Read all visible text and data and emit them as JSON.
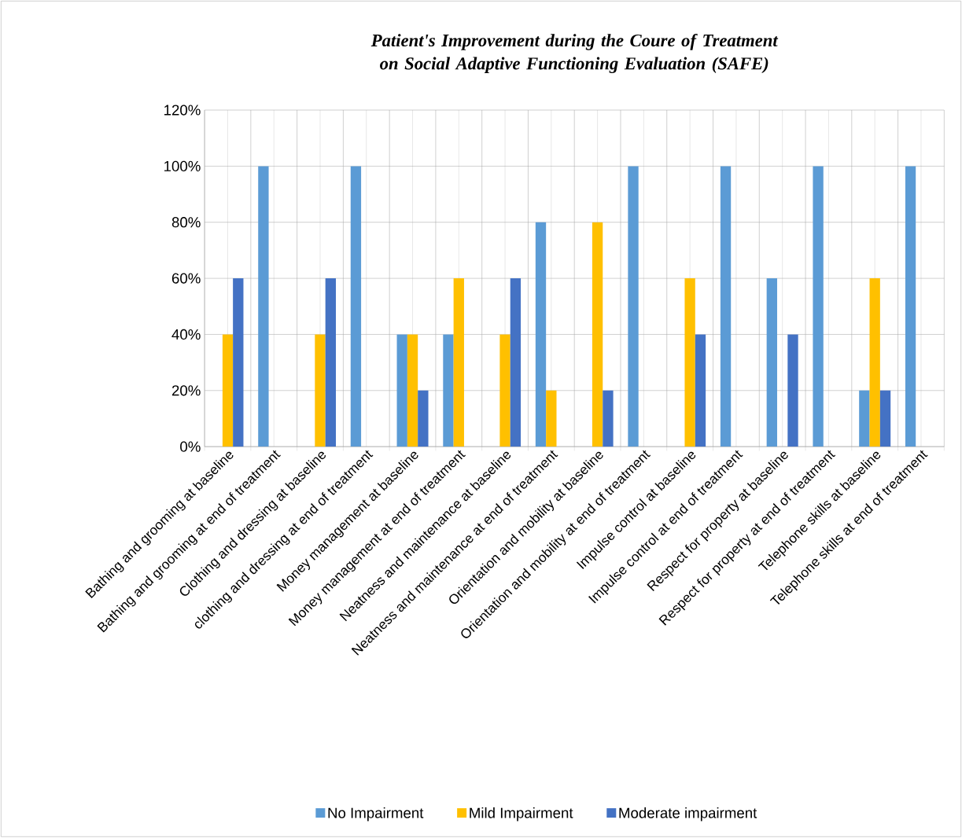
{
  "chart_data": {
    "type": "bar",
    "title": "Patient's Improvement during the Coure of Treatment on Social Adaptive Functioning Evaluation (SAFE)",
    "categories": [
      "Bathing and grooming at baseline",
      "Bathing and grooming at end of treatment",
      "Clothing and dressing at baseline",
      "clothing and dressing at end of treatment",
      "Money management at baseline",
      "Money management at end of treatment",
      "Neatness and maintenance at baseline",
      "Neatness and maintenance at end of treatment",
      "Orientation and mobility at baseline",
      "Orientation and mobility at end of treatment",
      "Impulse control at baseline",
      "Impulse control at end of treatment",
      "Respect for property at baseline",
      "Respect for property at end of treatment",
      "Telephone skills at baseline",
      "Telephone skills at end of treatment"
    ],
    "series": [
      {
        "name": "No Impairment",
        "color": "#5b9bd5",
        "values": [
          0,
          100,
          0,
          100,
          40,
          40,
          0,
          80,
          0,
          100,
          0,
          100,
          60,
          100,
          20,
          100
        ]
      },
      {
        "name": "Mild Impairment",
        "color": "#ffc000",
        "values": [
          40,
          0,
          40,
          0,
          40,
          60,
          40,
          20,
          80,
          0,
          60,
          0,
          0,
          0,
          60,
          0
        ]
      },
      {
        "name": "Moderate impairment",
        "color": "#4472c4",
        "values": [
          60,
          0,
          60,
          0,
          20,
          0,
          60,
          0,
          20,
          0,
          40,
          0,
          40,
          0,
          20,
          0
        ]
      }
    ],
    "ylim": [
      0,
      120
    ],
    "yticks": [
      {
        "value": 0,
        "label": "0%"
      },
      {
        "value": 20,
        "label": "20%"
      },
      {
        "value": 40,
        "label": "40%"
      },
      {
        "value": 60,
        "label": "60%"
      },
      {
        "value": 80,
        "label": "80%"
      },
      {
        "value": 100,
        "label": "100%"
      },
      {
        "value": 120,
        "label": "120%"
      }
    ],
    "grid": true,
    "legend": "bottom"
  }
}
